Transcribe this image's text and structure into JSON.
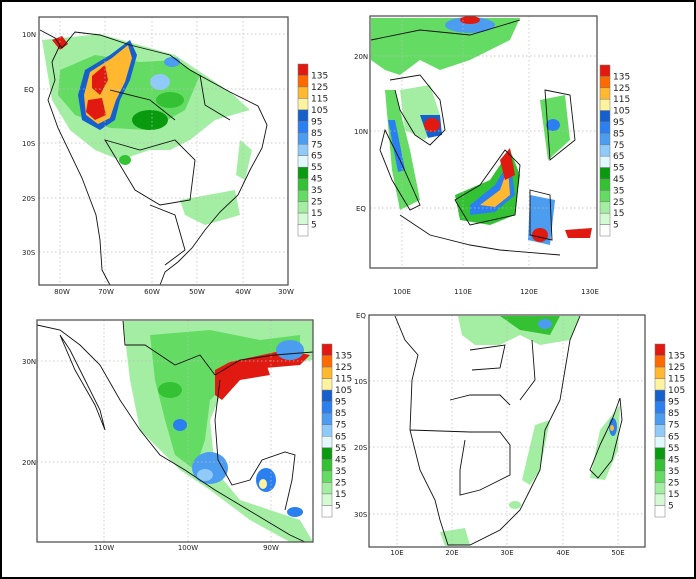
{
  "legend": {
    "labels": [
      "135",
      "125",
      "115",
      "105",
      "95",
      "85",
      "75",
      "65",
      "55",
      "45",
      "35",
      "25",
      "15",
      "5"
    ],
    "colors": [
      "#e01a10",
      "#ff6a00",
      "#ffb830",
      "#fff3a0",
      "#1560cc",
      "#2a80f0",
      "#4c9cf0",
      "#90caf8",
      "#e2f8ff",
      "#0a9a10",
      "#34c234",
      "#64dc64",
      "#a4eea4",
      "#d4fad4",
      "#ffffff"
    ]
  },
  "panels": {
    "south_america": {
      "y_ticks": [
        "10N",
        "EQ",
        "10S",
        "20S",
        "30S"
      ],
      "x_ticks": [
        "80W",
        "70W",
        "60W",
        "50W",
        "40W",
        "30W"
      ]
    },
    "southeast_asia": {
      "y_ticks": [
        "20N",
        "10N",
        "EQ"
      ],
      "x_ticks": [
        "100E",
        "110E",
        "120E",
        "130E"
      ]
    },
    "mexico": {
      "y_ticks": [
        "30N",
        "20N"
      ],
      "x_ticks": [
        "110W",
        "100W",
        "90W"
      ]
    },
    "southern_africa": {
      "y_ticks": [
        "EQ",
        "10S",
        "20S",
        "30S"
      ],
      "x_ticks": [
        "10E",
        "20E",
        "30E",
        "40E",
        "50E"
      ]
    }
  }
}
